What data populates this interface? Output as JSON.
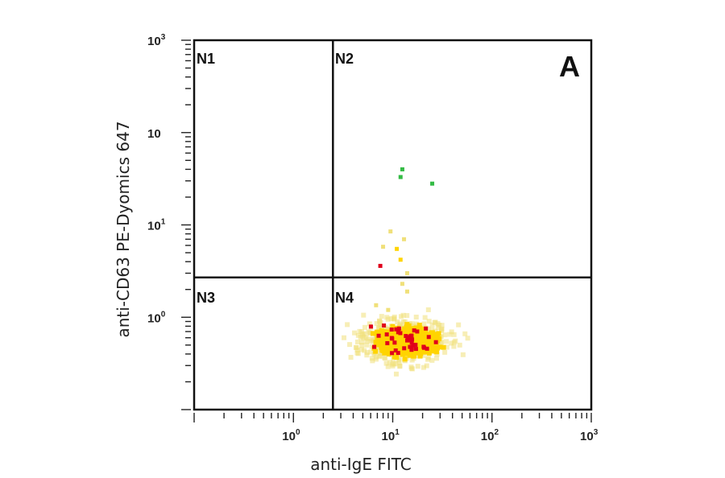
{
  "chart_data": {
    "type": "scatter",
    "panel_label": "A",
    "xlabel": "anti-IgE FITC",
    "ylabel": "anti-CD63 PE-Dyomics 647",
    "x_scale": "log",
    "y_scale": "log",
    "xlim": [
      0.1,
      1000
    ],
    "ylim": [
      0.1,
      1000
    ],
    "x_ticks": [
      {
        "base": "10",
        "exp": "0"
      },
      {
        "base": "10",
        "exp": "1"
      },
      {
        "base": "10",
        "exp": "2"
      },
      {
        "base": "10",
        "exp": "3"
      }
    ],
    "y_ticks": [
      {
        "base": "10",
        "exp": "3"
      },
      {
        "base": "10",
        "exp": ""
      },
      {
        "base": "10",
        "exp": "1"
      },
      {
        "base": "10",
        "exp": "0"
      }
    ],
    "quadrant_gates": {
      "x": 2.5,
      "y": 2.7
    },
    "quadrants": [
      "N1",
      "N2",
      "N3",
      "N4"
    ],
    "density_colors": {
      "low": "#f0e07a",
      "mid": "#ffd400",
      "high": "#e0001b",
      "outlier": "#33bb44"
    },
    "events": [
      {
        "x": 12.5,
        "y": 40,
        "d": "outlier"
      },
      {
        "x": 12,
        "y": 33,
        "d": "outlier"
      },
      {
        "x": 25,
        "y": 28,
        "d": "outlier"
      },
      {
        "x": 9.5,
        "y": 8.5,
        "d": "low"
      },
      {
        "x": 13,
        "y": 7,
        "d": "low"
      },
      {
        "x": 11,
        "y": 5.5,
        "d": "mid"
      },
      {
        "x": 8,
        "y": 5.8,
        "d": "low"
      },
      {
        "x": 12,
        "y": 4.2,
        "d": "mid"
      },
      {
        "x": 7.5,
        "y": 3.6,
        "d": "high"
      },
      {
        "x": 14,
        "y": 3.0,
        "d": "low"
      },
      {
        "x": 12.5,
        "y": 2.3,
        "d": "low"
      },
      {
        "x": 14,
        "y": 1.9,
        "d": "low"
      },
      {
        "x": 6.8,
        "y": 1.35,
        "d": "low"
      },
      {
        "x": 9,
        "y": 1.2,
        "d": "low"
      }
    ]
  }
}
